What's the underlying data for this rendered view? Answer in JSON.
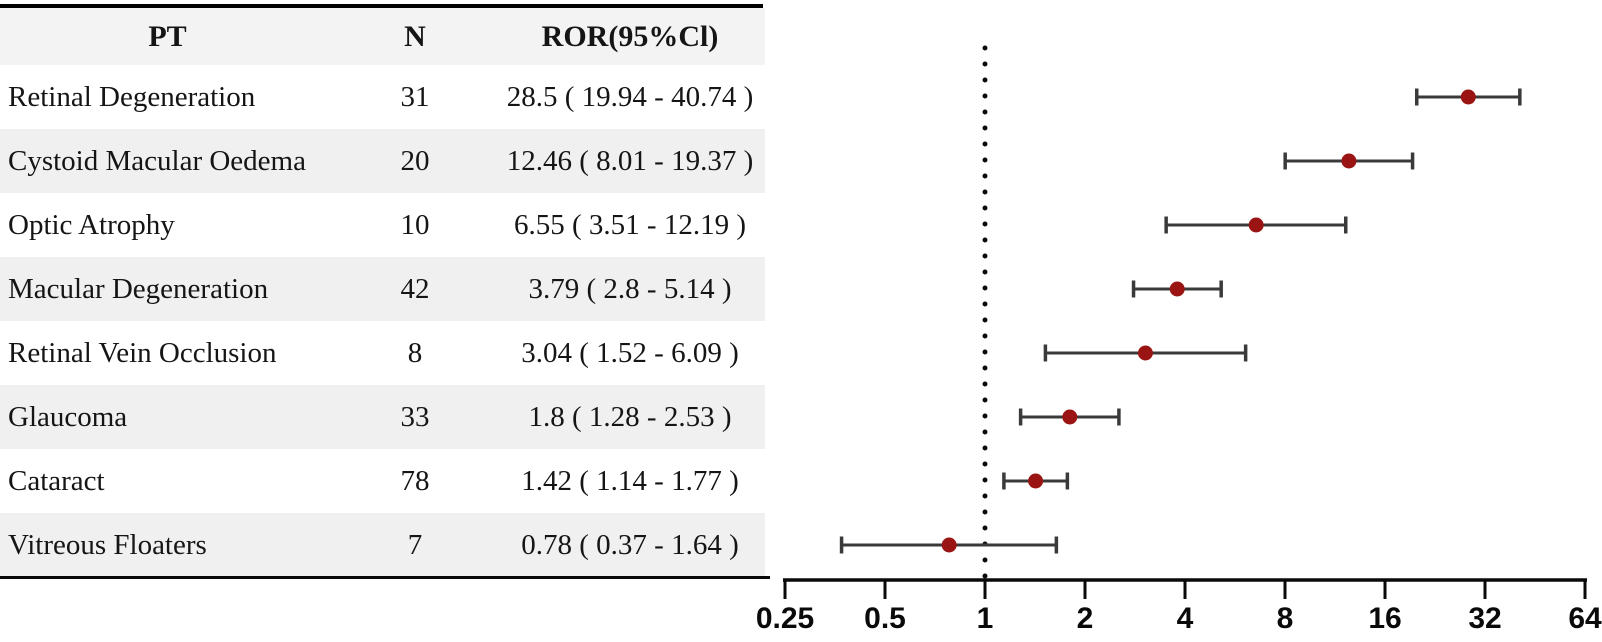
{
  "table": {
    "columns": [
      "PT",
      "N",
      "ROR(95%Cl)"
    ],
    "rows": [
      {
        "pt": "Retinal Degeneration",
        "n": "31",
        "ror": "28.5 ( 19.94 - 40.74 )"
      },
      {
        "pt": "Cystoid Macular Oedema",
        "n": "20",
        "ror": "12.46 ( 8.01 - 19.37 )"
      },
      {
        "pt": "Optic Atrophy",
        "n": "10",
        "ror": "6.55 ( 3.51 - 12.19 )"
      },
      {
        "pt": "Macular Degeneration",
        "n": "42",
        "ror": "3.79 ( 2.8 - 5.14 )"
      },
      {
        "pt": "Retinal Vein Occlusion",
        "n": "8",
        "ror": "3.04 ( 1.52 - 6.09 )"
      },
      {
        "pt": "Glaucoma",
        "n": "33",
        "ror": "1.8 ( 1.28 - 2.53 )"
      },
      {
        "pt": "Cataract",
        "n": "78",
        "ror": "1.42 ( 1.14 - 1.77 )"
      },
      {
        "pt": "Vitreous Floaters",
        "n": "7",
        "ror": "0.78 ( 0.37 - 1.64 )"
      }
    ]
  },
  "chart_data": {
    "type": "scatter",
    "subtype": "forest-plot",
    "x_scale": "log2",
    "x_range": [
      0.25,
      64
    ],
    "x_ticks": [
      0.25,
      0.5,
      1,
      2,
      4,
      8,
      16,
      32,
      64
    ],
    "x_tick_labels": [
      "0.25",
      "0.5",
      "1",
      "2",
      "4",
      "8",
      "16",
      "32",
      "64"
    ],
    "reference_line": 1,
    "reference_line_style": "dotted",
    "grid": false,
    "legend": "none",
    "categories": [
      "Retinal Degeneration",
      "Cystoid Macular Oedema",
      "Optic Atrophy",
      "Macular Degeneration",
      "Retinal Vein Occlusion",
      "Glaucoma",
      "Cataract",
      "Vitreous Floaters"
    ],
    "series": [
      {
        "name": "ROR (95% CI)",
        "points": [
          {
            "ror": 28.5,
            "low": 19.94,
            "high": 40.74
          },
          {
            "ror": 12.46,
            "low": 8.01,
            "high": 19.37
          },
          {
            "ror": 6.55,
            "low": 3.51,
            "high": 12.19
          },
          {
            "ror": 3.79,
            "low": 2.8,
            "high": 5.14
          },
          {
            "ror": 3.04,
            "low": 1.52,
            "high": 6.09
          },
          {
            "ror": 1.8,
            "low": 1.28,
            "high": 2.53
          },
          {
            "ror": 1.42,
            "low": 1.14,
            "high": 1.77
          },
          {
            "ror": 0.78,
            "low": 0.37,
            "high": 1.64
          }
        ]
      }
    ],
    "marker_color": "#9a1414",
    "whisker_color": "#3a3a3a",
    "axis_color": "#0a0a0a"
  }
}
